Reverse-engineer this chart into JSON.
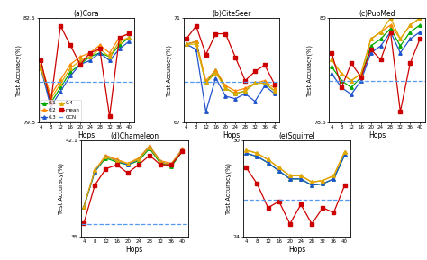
{
  "hops": [
    4,
    8,
    12,
    16,
    20,
    24,
    28,
    32,
    36,
    40
  ],
  "cora": {
    "title": "(a)Cora",
    "ylim": [
      79.8,
      82.5
    ],
    "yticks_top": 82.5,
    "yticks_bot": 79.8,
    "gcn": 80.85,
    "p01": [
      81.2,
      80.3,
      80.7,
      81.1,
      81.3,
      81.5,
      81.6,
      81.5,
      81.8,
      82.0
    ],
    "p02": [
      81.3,
      80.5,
      80.9,
      81.3,
      81.5,
      81.6,
      81.8,
      81.6,
      82.0,
      82.1
    ],
    "p03": [
      81.2,
      80.2,
      80.6,
      81.0,
      81.3,
      81.4,
      81.6,
      81.4,
      81.7,
      81.9
    ],
    "p04": [
      81.2,
      80.4,
      80.8,
      81.2,
      81.4,
      81.5,
      81.7,
      81.5,
      81.9,
      82.0
    ],
    "mean": [
      81.4,
      80.3,
      82.3,
      81.8,
      81.3,
      81.6,
      81.7,
      79.95,
      82.0,
      82.1
    ]
  },
  "citeseer": {
    "title": "(b)CiteSeer",
    "ylim": [
      67.0,
      71.0
    ],
    "yticks_top": 71,
    "yticks_bot": 67,
    "gcn": 68.55,
    "p01": [
      70.0,
      70.1,
      68.5,
      69.0,
      68.3,
      68.1,
      68.2,
      68.5,
      68.5,
      68.2
    ],
    "p02": [
      70.0,
      70.1,
      68.6,
      69.0,
      68.4,
      68.2,
      68.3,
      68.5,
      68.6,
      68.3
    ],
    "p03": [
      70.0,
      69.8,
      67.4,
      68.7,
      68.0,
      67.9,
      68.1,
      67.8,
      68.4,
      68.1
    ],
    "p04": [
      70.0,
      70.0,
      68.5,
      68.9,
      68.3,
      68.1,
      68.2,
      68.5,
      68.5,
      68.2
    ],
    "mean": [
      70.2,
      70.7,
      69.6,
      70.4,
      70.4,
      69.5,
      68.6,
      68.95,
      69.2,
      68.45
    ]
  },
  "pubmed": {
    "title": "(c)PubMed",
    "ylim": [
      78.5,
      80.0
    ],
    "yticks_top": 80,
    "yticks_bot": 78.5,
    "gcn": 79.1,
    "p01": [
      79.3,
      79.1,
      79.0,
      79.15,
      79.6,
      79.7,
      79.85,
      79.6,
      79.8,
      79.9
    ],
    "p02": [
      79.4,
      79.2,
      79.1,
      79.2,
      79.7,
      79.8,
      79.9,
      79.7,
      79.9,
      80.0
    ],
    "p03": [
      79.2,
      79.0,
      78.9,
      79.1,
      79.5,
      79.6,
      79.8,
      79.5,
      79.7,
      79.8
    ],
    "p04": [
      79.4,
      79.2,
      79.1,
      79.2,
      79.7,
      79.8,
      80.0,
      79.7,
      79.9,
      80.0
    ],
    "mean": [
      79.5,
      79.0,
      79.35,
      79.15,
      79.55,
      79.4,
      79.8,
      78.65,
      79.35,
      79.7
    ]
  },
  "chameleon": {
    "title": "(d)Chameleon",
    "ylim": [
      35.0,
      42.1
    ],
    "yticks_top": 42.1,
    "yticks_bot": 35,
    "gcn": 35.9,
    "p01": [
      37.2,
      39.8,
      40.8,
      40.5,
      40.3,
      40.6,
      41.5,
      40.4,
      40.2,
      41.3
    ],
    "p02": [
      37.2,
      39.9,
      41.0,
      40.7,
      40.4,
      40.8,
      41.7,
      40.6,
      40.4,
      41.5
    ],
    "p03": [
      37.2,
      39.8,
      40.9,
      40.6,
      40.3,
      40.7,
      41.6,
      40.5,
      40.3,
      41.4
    ],
    "p04": [
      37.2,
      39.9,
      40.9,
      40.6,
      40.4,
      40.7,
      41.6,
      40.5,
      40.3,
      41.4
    ],
    "mean": [
      36.0,
      38.8,
      40.0,
      40.3,
      39.7,
      40.3,
      41.0,
      40.3,
      40.3,
      41.3
    ]
  },
  "squirrel": {
    "title": "(e)Squirrel",
    "ylim": [
      24.0,
      30.0
    ],
    "yticks_top": 30,
    "yticks_bot": 24,
    "gcn": 26.3,
    "p01": [
      29.2,
      29.0,
      28.6,
      28.1,
      27.6,
      27.6,
      27.2,
      27.3,
      27.6,
      29.1
    ],
    "p02": [
      29.4,
      29.2,
      28.8,
      28.3,
      27.8,
      27.8,
      27.4,
      27.5,
      27.8,
      29.3
    ],
    "p03": [
      29.2,
      29.0,
      28.6,
      28.1,
      27.6,
      27.6,
      27.2,
      27.3,
      27.6,
      29.1
    ],
    "p04": [
      29.4,
      29.2,
      28.8,
      28.3,
      27.8,
      27.8,
      27.4,
      27.5,
      27.8,
      29.3
    ],
    "mean": [
      28.3,
      27.3,
      25.8,
      26.2,
      24.8,
      26.0,
      24.8,
      25.8,
      25.5,
      27.2
    ]
  },
  "colors": {
    "p01": "#00aa00",
    "p02": "#ff8800",
    "p03": "#2255cc",
    "p04": "#ddaa00",
    "mean": "#cc0000",
    "gcn": "#5599ee"
  },
  "marker_tri": "^",
  "marker_sq": "s",
  "markersize": 2.5,
  "linewidth": 0.9
}
